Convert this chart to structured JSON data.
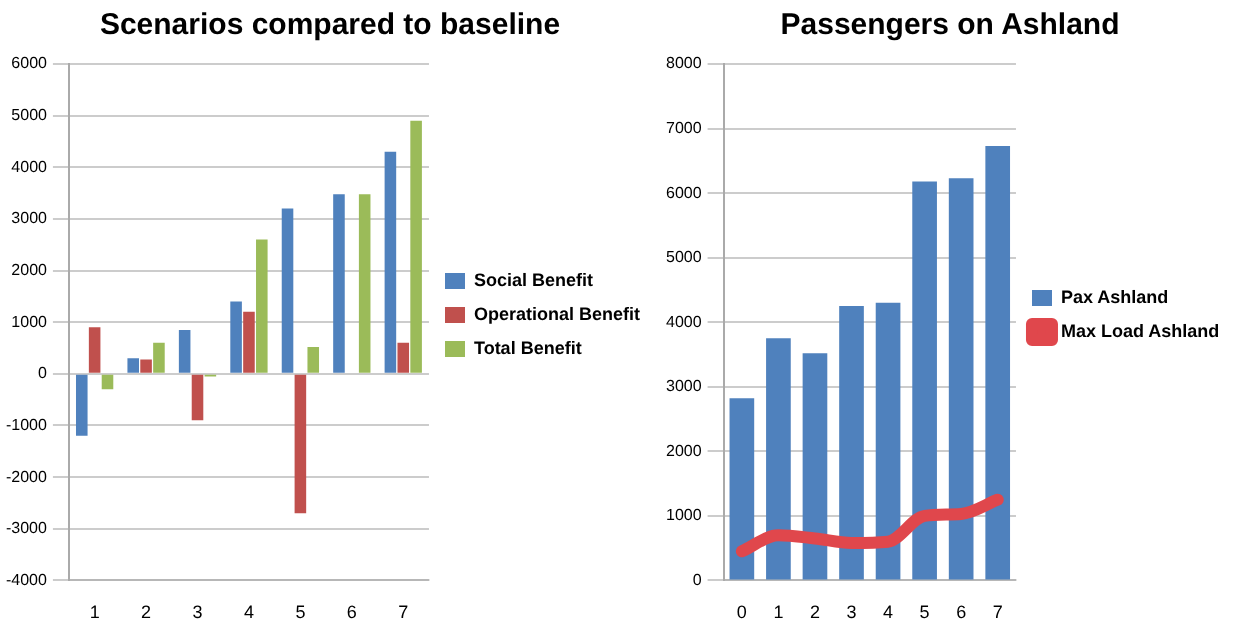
{
  "chart_data": [
    {
      "type": "bar",
      "title": "Scenarios compared to baseline",
      "categories": [
        "1",
        "2",
        "3",
        "4",
        "5",
        "6",
        "7"
      ],
      "series": [
        {
          "name": "Social Benefit",
          "color": "#4f81bd",
          "values": [
            -1200,
            300,
            850,
            1400,
            3200,
            3480,
            4300
          ]
        },
        {
          "name": "Operational Benefit",
          "color": "#c0504d",
          "values": [
            900,
            280,
            -900,
            1200,
            -2700,
            0,
            600
          ]
        },
        {
          "name": "Total Benefit",
          "color": "#9bbb59",
          "values": [
            -300,
            600,
            -50,
            2600,
            520,
            3480,
            4900
          ]
        }
      ],
      "ylim": [
        -4000,
        6000
      ],
      "yticks": [
        -4000,
        -3000,
        -2000,
        -1000,
        0,
        1000,
        2000,
        3000,
        4000,
        5000,
        6000
      ],
      "grid": "y",
      "legend": "right"
    },
    {
      "type": "bar",
      "title": "Passengers on Ashland",
      "categories": [
        "0",
        "1",
        "2",
        "3",
        "4",
        "5",
        "6",
        "7"
      ],
      "series": [
        {
          "name": "Pax Ashland",
          "color": "#4f81bd",
          "values": [
            2820,
            3750,
            3520,
            4250,
            4300,
            6180,
            6230,
            6730
          ]
        },
        {
          "name": "Max Load Ashland",
          "type": "line",
          "color": "#e0474c",
          "values": [
            450,
            700,
            650,
            580,
            600,
            1000,
            1030,
            1250
          ]
        }
      ],
      "ylim": [
        0,
        8000
      ],
      "yticks": [
        0,
        1000,
        2000,
        3000,
        4000,
        5000,
        6000,
        7000,
        8000
      ],
      "grid": "y",
      "legend": "right",
      "marker": "none"
    }
  ]
}
